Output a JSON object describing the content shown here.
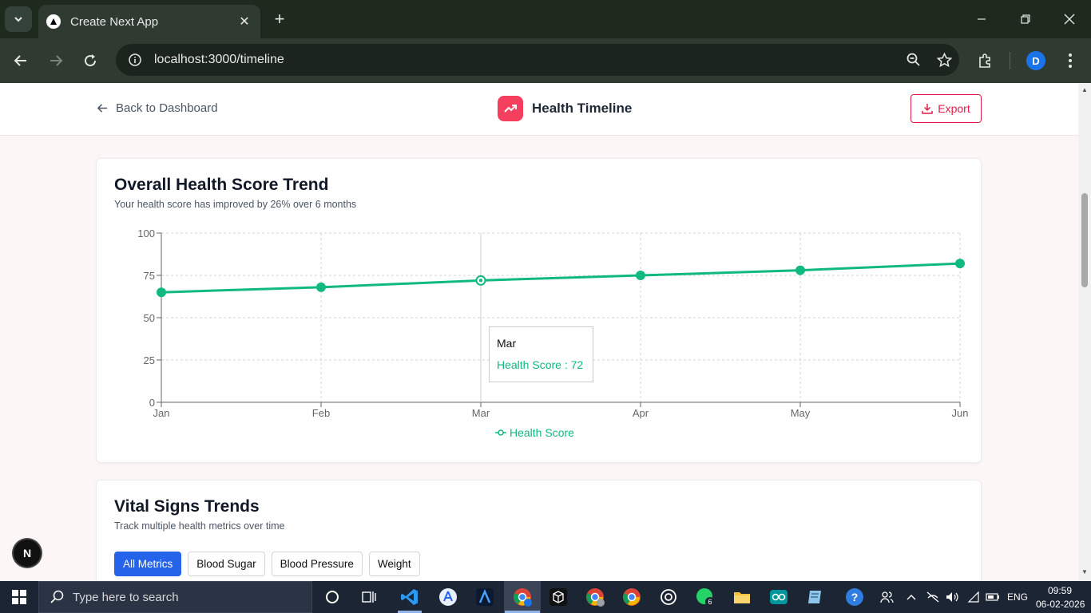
{
  "browser": {
    "tab_title": "Create Next App",
    "url": "localhost:3000/timeline",
    "profile_initial": "D",
    "icons": [
      "tab-search-icon",
      "close-icon",
      "new-tab-icon",
      "minimize-icon",
      "restore-icon",
      "window-close-icon",
      "back-icon",
      "forward-icon",
      "reload-icon",
      "site-info-icon",
      "zoom-icon",
      "bookmark-star-icon",
      "extensions-icon",
      "menu-icon"
    ]
  },
  "header": {
    "back_label": "Back to Dashboard",
    "title": "Health Timeline",
    "export_label": "Export"
  },
  "overall_card": {
    "title": "Overall Health Score Trend",
    "subtitle": "Your health score has improved by 26% over 6 months",
    "tooltip_label": "Mar",
    "tooltip_value": "Health Score : 72",
    "legend_label": "Health Score"
  },
  "chart_data": {
    "type": "line",
    "categories": [
      "Jan",
      "Feb",
      "Mar",
      "Apr",
      "May",
      "Jun"
    ],
    "series": [
      {
        "name": "Health Score",
        "values": [
          65,
          68,
          72,
          75,
          78,
          82
        ],
        "color": "#10b981"
      }
    ],
    "yticks": [
      "0",
      "25",
      "50",
      "75",
      "100"
    ],
    "ylim": [
      0,
      100
    ],
    "grid": true,
    "legend": "bottom",
    "active_point": "Mar"
  },
  "vitals_card": {
    "title": "Vital Signs Trends",
    "subtitle": "Track multiple health metrics over time",
    "filters": [
      "All Metrics",
      "Blood Sugar",
      "Blood Pressure",
      "Weight"
    ],
    "active_filter": "All Metrics"
  },
  "next_badge": "N",
  "taskbar": {
    "search_placeholder": "Type here to search",
    "whatsapp_badge": "6",
    "language": "ENG",
    "time": "09:59",
    "date": "06-02-2026"
  },
  "colors": {
    "accent": "#f43f5e",
    "export": "#e11d48",
    "chart_line": "#10b981",
    "filter_active": "#2563eb"
  }
}
